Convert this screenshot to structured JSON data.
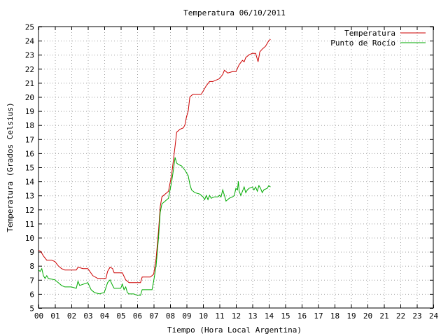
{
  "chart_data": {
    "type": "line",
    "title": "Temperatura 06/10/2011",
    "xlabel": "Tiempo (Hora Local Argentina)",
    "ylabel": "Temperatura (Grados Celsius)",
    "xlim": [
      0,
      24
    ],
    "ylim": [
      5,
      25
    ],
    "x_ticks": [
      "00",
      "01",
      "02",
      "03",
      "04",
      "05",
      "06",
      "07",
      "08",
      "09",
      "10",
      "11",
      "12",
      "13",
      "14",
      "15",
      "16",
      "17",
      "18",
      "19",
      "20",
      "21",
      "22",
      "23",
      "24"
    ],
    "y_ticks": [
      "5",
      "6",
      "7",
      "8",
      "9",
      "10",
      "11",
      "12",
      "13",
      "14",
      "15",
      "16",
      "17",
      "18",
      "19",
      "20",
      "21",
      "22",
      "23",
      "24",
      "25"
    ],
    "grid": true,
    "legend_position": "top-right",
    "series": [
      {
        "name": "Temperatura",
        "color": "#cc0000",
        "points": [
          [
            0.0,
            9.1
          ],
          [
            0.15,
            9.0
          ],
          [
            0.3,
            8.7
          ],
          [
            0.5,
            8.4
          ],
          [
            0.8,
            8.4
          ],
          [
            1.0,
            8.3
          ],
          [
            1.2,
            8.0
          ],
          [
            1.4,
            7.8
          ],
          [
            1.6,
            7.7
          ],
          [
            2.0,
            7.7
          ],
          [
            2.3,
            7.7
          ],
          [
            2.4,
            7.9
          ],
          [
            2.7,
            7.8
          ],
          [
            3.0,
            7.8
          ],
          [
            3.3,
            7.3
          ],
          [
            3.6,
            7.1
          ],
          [
            3.9,
            7.1
          ],
          [
            4.1,
            7.1
          ],
          [
            4.2,
            7.6
          ],
          [
            4.35,
            7.9
          ],
          [
            4.5,
            7.8
          ],
          [
            4.6,
            7.5
          ],
          [
            4.8,
            7.5
          ],
          [
            5.0,
            7.5
          ],
          [
            5.1,
            7.5
          ],
          [
            5.3,
            7.0
          ],
          [
            5.5,
            6.8
          ],
          [
            5.8,
            6.8
          ],
          [
            6.0,
            6.8
          ],
          [
            6.2,
            6.8
          ],
          [
            6.3,
            7.2
          ],
          [
            6.5,
            7.2
          ],
          [
            6.8,
            7.2
          ],
          [
            7.0,
            7.4
          ],
          [
            7.15,
            8.5
          ],
          [
            7.3,
            10.5
          ],
          [
            7.4,
            12.2
          ],
          [
            7.5,
            12.9
          ],
          [
            7.7,
            13.1
          ],
          [
            7.9,
            13.3
          ],
          [
            8.1,
            14.5
          ],
          [
            8.2,
            15.5
          ],
          [
            8.3,
            16.5
          ],
          [
            8.4,
            17.5
          ],
          [
            8.6,
            17.7
          ],
          [
            8.8,
            17.8
          ],
          [
            8.9,
            18.0
          ],
          [
            9.0,
            18.6
          ],
          [
            9.1,
            19.0
          ],
          [
            9.2,
            20.0
          ],
          [
            9.4,
            20.2
          ],
          [
            9.7,
            20.2
          ],
          [
            9.9,
            20.2
          ],
          [
            10.0,
            20.4
          ],
          [
            10.2,
            20.8
          ],
          [
            10.4,
            21.1
          ],
          [
            10.6,
            21.1
          ],
          [
            10.8,
            21.2
          ],
          [
            11.0,
            21.3
          ],
          [
            11.2,
            21.6
          ],
          [
            11.3,
            21.9
          ],
          [
            11.5,
            21.7
          ],
          [
            11.8,
            21.8
          ],
          [
            12.0,
            21.8
          ],
          [
            12.2,
            22.3
          ],
          [
            12.4,
            22.6
          ],
          [
            12.5,
            22.5
          ],
          [
            12.6,
            22.8
          ],
          [
            12.8,
            23.0
          ],
          [
            13.0,
            23.1
          ],
          [
            13.2,
            23.1
          ],
          [
            13.35,
            22.5
          ],
          [
            13.45,
            23.2
          ],
          [
            13.6,
            23.4
          ],
          [
            13.8,
            23.6
          ],
          [
            14.0,
            24.0
          ],
          [
            14.1,
            24.1
          ]
        ]
      },
      {
        "name": "Punto de Rocío",
        "color": "#00aa00",
        "points": [
          [
            0.0,
            7.7
          ],
          [
            0.1,
            7.6
          ],
          [
            0.2,
            7.8
          ],
          [
            0.3,
            7.3
          ],
          [
            0.4,
            7.1
          ],
          [
            0.5,
            7.3
          ],
          [
            0.6,
            7.1
          ],
          [
            1.0,
            7.0
          ],
          [
            1.2,
            6.8
          ],
          [
            1.4,
            6.6
          ],
          [
            1.6,
            6.5
          ],
          [
            2.0,
            6.5
          ],
          [
            2.3,
            6.4
          ],
          [
            2.4,
            6.9
          ],
          [
            2.5,
            6.6
          ],
          [
            3.0,
            6.8
          ],
          [
            3.2,
            6.3
          ],
          [
            3.4,
            6.1
          ],
          [
            3.7,
            6.0
          ],
          [
            4.0,
            6.1
          ],
          [
            4.2,
            6.8
          ],
          [
            4.35,
            7.0
          ],
          [
            4.5,
            6.6
          ],
          [
            4.6,
            6.4
          ],
          [
            5.0,
            6.4
          ],
          [
            5.1,
            6.7
          ],
          [
            5.2,
            6.3
          ],
          [
            5.3,
            6.5
          ],
          [
            5.4,
            6.1
          ],
          [
            5.5,
            6.0
          ],
          [
            5.8,
            6.0
          ],
          [
            6.0,
            5.9
          ],
          [
            6.2,
            5.9
          ],
          [
            6.3,
            6.3
          ],
          [
            6.6,
            6.3
          ],
          [
            6.9,
            6.3
          ],
          [
            7.0,
            6.9
          ],
          [
            7.15,
            8.0
          ],
          [
            7.3,
            10.0
          ],
          [
            7.4,
            11.8
          ],
          [
            7.5,
            12.4
          ],
          [
            7.7,
            12.6
          ],
          [
            7.9,
            12.8
          ],
          [
            8.1,
            14.0
          ],
          [
            8.2,
            14.8
          ],
          [
            8.3,
            15.7
          ],
          [
            8.4,
            15.3
          ],
          [
            8.5,
            15.2
          ],
          [
            8.7,
            15.1
          ],
          [
            8.9,
            14.8
          ],
          [
            9.0,
            14.6
          ],
          [
            9.1,
            14.4
          ],
          [
            9.2,
            13.8
          ],
          [
            9.3,
            13.4
          ],
          [
            9.5,
            13.2
          ],
          [
            9.8,
            13.1
          ],
          [
            10.0,
            12.9
          ],
          [
            10.1,
            12.7
          ],
          [
            10.2,
            13.0
          ],
          [
            10.3,
            12.7
          ],
          [
            10.4,
            13.0
          ],
          [
            10.5,
            12.8
          ],
          [
            10.7,
            12.9
          ],
          [
            10.9,
            12.9
          ],
          [
            11.0,
            13.0
          ],
          [
            11.1,
            12.9
          ],
          [
            11.2,
            13.4
          ],
          [
            11.3,
            13.0
          ],
          [
            11.4,
            12.6
          ],
          [
            11.6,
            12.8
          ],
          [
            11.8,
            12.9
          ],
          [
            11.9,
            13.0
          ],
          [
            12.0,
            13.5
          ],
          [
            12.1,
            13.4
          ],
          [
            12.15,
            14.0
          ],
          [
            12.2,
            13.3
          ],
          [
            12.3,
            13.0
          ],
          [
            12.4,
            13.3
          ],
          [
            12.5,
            13.6
          ],
          [
            12.6,
            13.2
          ],
          [
            12.7,
            13.4
          ],
          [
            12.8,
            13.5
          ],
          [
            13.0,
            13.6
          ],
          [
            13.1,
            13.4
          ],
          [
            13.2,
            13.6
          ],
          [
            13.3,
            13.3
          ],
          [
            13.4,
            13.7
          ],
          [
            13.5,
            13.5
          ],
          [
            13.6,
            13.2
          ],
          [
            13.7,
            13.4
          ],
          [
            13.9,
            13.5
          ],
          [
            14.0,
            13.7
          ],
          [
            14.1,
            13.6
          ]
        ]
      }
    ]
  }
}
